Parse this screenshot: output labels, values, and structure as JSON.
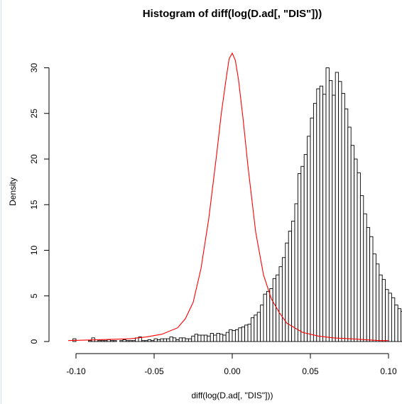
{
  "chart_data": {
    "type": "histogram",
    "title": "Histogram of diff(log(D.ad[, \"DIS\"]))",
    "xlabel": "diff(log(D.ad[, \"DIS\"]))",
    "ylabel": "Density",
    "xlim": [
      -0.105,
      0.1
    ],
    "ylim": [
      0,
      32
    ],
    "x_ticks": [
      -0.1,
      -0.05,
      0.0,
      0.05,
      0.1
    ],
    "x_tick_labels": [
      "-0.10",
      "-0.05",
      "0.00",
      "0.05",
      "0.10"
    ],
    "y_ticks": [
      0,
      5,
      10,
      15,
      20,
      25,
      30
    ],
    "y_tick_labels": [
      "0",
      "5",
      "10",
      "15",
      "20",
      "25",
      "30"
    ],
    "bin_width": 0.002,
    "bin_start": -0.104,
    "bars": [
      0.0,
      0.3,
      0.0,
      0.0,
      0.0,
      0.0,
      0.1,
      0.4,
      0.2,
      0.1,
      0.1,
      0.1,
      0.2,
      0.1,
      0.1,
      0.0,
      0.1,
      0.2,
      0.1,
      0.1,
      0.1,
      0.4,
      0.5,
      0.1,
      0.1,
      0.2,
      0.1,
      0.3,
      0.2,
      0.3,
      0.3,
      0.3,
      0.5,
      0.4,
      0.2,
      0.4,
      0.4,
      0.3,
      0.3,
      0.6,
      0.8,
      0.7,
      0.7,
      0.7,
      0.6,
      0.9,
      0.7,
      0.9,
      0.8,
      0.7,
      1.0,
      1.3,
      1.2,
      1.3,
      1.5,
      1.6,
      1.8,
      1.9,
      2.6,
      2.9,
      3.2,
      4.0,
      5.2,
      5.5,
      5.8,
      6.9,
      7.3,
      8.2,
      9.2,
      10.8,
      12.1,
      13.2,
      15.1,
      18.4,
      19.2,
      20.5,
      22.5,
      24.5,
      26.1,
      27.7,
      28.0,
      27.1,
      30.0,
      28.6,
      27.0,
      29.5,
      28.5,
      27.2,
      25.5,
      23.5,
      21.5,
      20.0,
      18.5,
      16.0,
      14.0,
      12.5,
      11.5,
      9.6,
      8.5,
      7.3,
      6.8,
      5.7,
      5.3,
      4.8,
      4.0,
      3.6,
      3.3,
      3.0,
      2.7,
      2.5,
      2.2,
      2.0,
      1.9,
      2.4,
      1.5,
      1.3,
      1.7,
      1.1,
      1.2,
      0.9,
      1.0,
      0.7,
      0.8,
      0.6,
      0.4,
      0.5,
      0.5,
      0.3,
      0.2,
      0.3,
      0.2,
      0.3,
      0.1,
      0.4,
      0.2,
      0.4,
      0.3,
      0.2,
      0.1,
      0.3,
      0.4,
      0.2,
      0.2,
      0.2,
      0.1,
      0.1,
      0.2,
      0.0,
      0.1,
      0.3,
      0.1,
      0.2,
      0.0,
      0.0,
      0.0,
      0.1
    ],
    "density_curve": {
      "color": "#ff0000",
      "x": [
        -0.105,
        -0.095,
        -0.085,
        -0.075,
        -0.065,
        -0.055,
        -0.045,
        -0.035,
        -0.03,
        -0.025,
        -0.02,
        -0.015,
        -0.01,
        -0.007,
        -0.004,
        -0.002,
        0.0,
        0.002,
        0.004,
        0.007,
        0.01,
        0.015,
        0.02,
        0.025,
        0.03,
        0.035,
        0.045,
        0.055,
        0.065,
        0.075,
        0.085,
        0.095,
        0.1
      ],
      "y": [
        0.1,
        0.15,
        0.2,
        0.25,
        0.3,
        0.5,
        0.8,
        1.5,
        2.5,
        4.3,
        8.0,
        13.5,
        20.5,
        25.0,
        28.7,
        31.0,
        31.6,
        30.8,
        28.7,
        24.3,
        19.3,
        12.0,
        7.3,
        4.7,
        3.2,
        2.0,
        1.0,
        0.6,
        0.4,
        0.3,
        0.2,
        0.1,
        0.1
      ]
    }
  }
}
